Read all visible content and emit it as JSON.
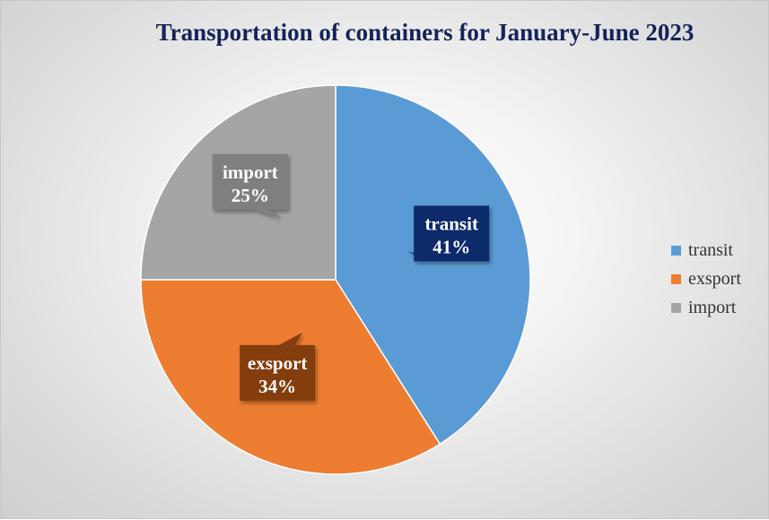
{
  "chart_data": {
    "type": "pie",
    "title": "Transportation of containers for January-June 2023",
    "categories": [
      "transit",
      "exsport",
      "import"
    ],
    "values": [
      41,
      34,
      25
    ],
    "value_labels": [
      "41%",
      "34%",
      "25%"
    ],
    "colors": [
      "#5b9bd5",
      "#ed7d31",
      "#a5a5a5"
    ],
    "label_box_colors": [
      "#0f2a6b",
      "#843c0c",
      "#7f7f7f"
    ],
    "legend": {
      "position": "right",
      "entries": [
        "transit",
        "exsport",
        "import"
      ]
    }
  }
}
